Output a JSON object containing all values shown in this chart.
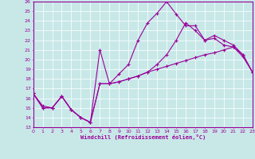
{
  "xlabel": "Windchill (Refroidissement éolien,°C)",
  "xlim": [
    0,
    23
  ],
  "ylim": [
    13,
    26
  ],
  "xticks": [
    0,
    1,
    2,
    3,
    4,
    5,
    6,
    7,
    8,
    9,
    10,
    11,
    12,
    13,
    14,
    15,
    16,
    17,
    18,
    19,
    20,
    21,
    22,
    23
  ],
  "yticks": [
    13,
    14,
    15,
    16,
    17,
    18,
    19,
    20,
    21,
    22,
    23,
    24,
    25,
    26
  ],
  "bg_color": "#c8e8e8",
  "line_color": "#990099",
  "grid_color": "#ffffff",
  "line1_x": [
    0,
    1,
    2,
    3,
    4,
    5,
    6,
    7,
    8,
    9,
    10,
    11,
    12,
    13,
    14,
    15,
    16,
    17,
    18,
    19,
    20,
    21,
    22,
    23
  ],
  "line1_y": [
    16.5,
    15.0,
    15.0,
    16.2,
    14.8,
    14.0,
    13.5,
    21.0,
    17.5,
    17.7,
    18.0,
    18.3,
    18.7,
    19.0,
    19.3,
    19.6,
    19.9,
    20.2,
    20.5,
    20.7,
    21.0,
    21.3,
    20.5,
    18.7
  ],
  "line2_x": [
    0,
    1,
    2,
    3,
    4,
    5,
    6,
    7,
    8,
    9,
    10,
    11,
    12,
    13,
    14,
    15,
    16,
    17,
    18,
    19,
    20,
    21,
    22,
    23
  ],
  "line2_y": [
    16.5,
    15.0,
    15.0,
    16.2,
    14.8,
    14.0,
    13.5,
    17.5,
    17.5,
    18.5,
    19.5,
    22.0,
    23.8,
    24.8,
    26.0,
    24.7,
    23.5,
    23.5,
    22.0,
    22.2,
    21.5,
    21.3,
    20.3,
    18.7
  ],
  "line3_x": [
    0,
    1,
    2,
    3,
    4,
    5,
    6,
    7,
    8,
    9,
    10,
    11,
    12,
    13,
    14,
    15,
    16,
    17,
    18,
    19,
    20,
    21,
    22,
    23
  ],
  "line3_y": [
    16.5,
    15.2,
    15.0,
    16.2,
    14.8,
    14.0,
    13.5,
    17.5,
    17.5,
    17.7,
    18.0,
    18.3,
    18.7,
    19.5,
    20.5,
    22.0,
    23.8,
    23.0,
    22.0,
    22.5,
    22.0,
    21.5,
    20.5,
    18.7
  ]
}
